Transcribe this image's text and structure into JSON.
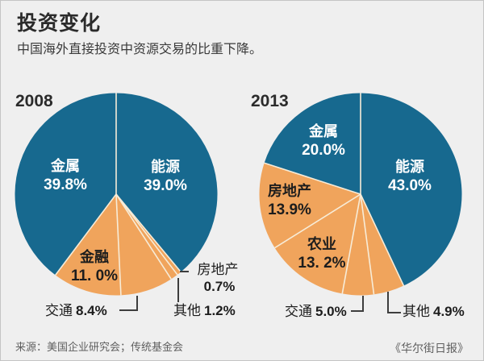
{
  "header": {
    "title": "投资变化",
    "subtitle": "中国海外直接投资中资源交易的比重下降。"
  },
  "palette": {
    "blue": "#17698f",
    "orange": "#f0a45c",
    "separator": "#f7ecd8",
    "background": "#efefef",
    "leader_line": "#3d3d3d",
    "label_on_blue": "#ffffff",
    "label_on_orange": "#1d1d1d"
  },
  "chart_data": [
    {
      "type": "pie",
      "title": "2008",
      "unit": "%",
      "start": "top",
      "direction": "clockwise",
      "slices": [
        {
          "label": "能源",
          "value": 39.0,
          "pct": "39.0%",
          "color": "blue"
        },
        {
          "label": "房地产",
          "value": 0.7,
          "pct": "0.7%",
          "color": "orange"
        },
        {
          "label": "其他",
          "value": 1.2,
          "pct": "1.2%",
          "color": "orange"
        },
        {
          "label": "交通",
          "value": 8.4,
          "pct": "8.4%",
          "color": "orange"
        },
        {
          "label": "金融",
          "value": 11.0,
          "pct": "11. 0%",
          "color": "orange"
        },
        {
          "label": "金属",
          "value": 39.8,
          "pct": "39.8%",
          "color": "blue"
        }
      ]
    },
    {
      "type": "pie",
      "title": "2013",
      "unit": "%",
      "start": "top",
      "direction": "clockwise",
      "slices": [
        {
          "label": "能源",
          "value": 43.0,
          "pct": "43.0%",
          "color": "blue"
        },
        {
          "label": "其他",
          "value": 4.9,
          "pct": "4.9%",
          "color": "orange"
        },
        {
          "label": "交通",
          "value": 5.0,
          "pct": "5.0%",
          "color": "orange"
        },
        {
          "label": "农业",
          "value": 13.2,
          "pct": "13. 2%",
          "color": "orange"
        },
        {
          "label": "房地产",
          "value": 13.9,
          "pct": "13.9%",
          "color": "orange"
        },
        {
          "label": "金属",
          "value": 20.0,
          "pct": "20.0%",
          "color": "blue"
        }
      ]
    }
  ],
  "footer": {
    "source": "来源：美国企业研究会；传统基金会",
    "credit": "《华尔街日报》"
  }
}
